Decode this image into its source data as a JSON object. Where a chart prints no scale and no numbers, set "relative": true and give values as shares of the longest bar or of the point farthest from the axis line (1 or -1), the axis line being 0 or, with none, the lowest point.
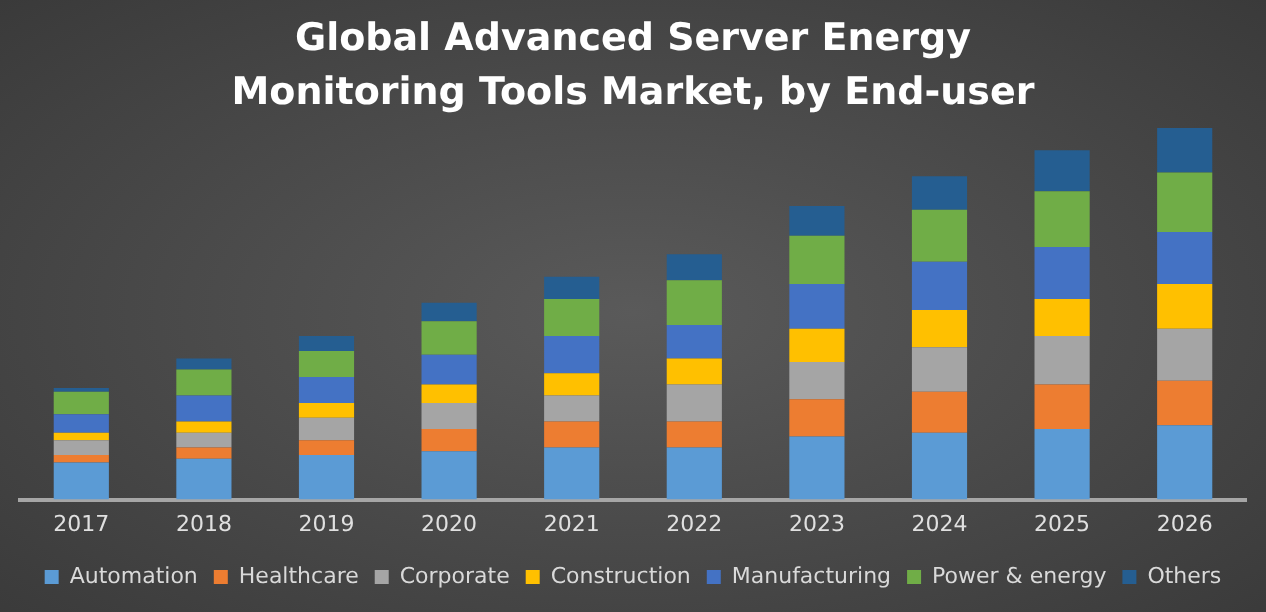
{
  "chart_data": {
    "type": "bar",
    "title": "Global Advanced Server Energy Monitoring Tools Market, by End-user",
    "categories": [
      "2017",
      "2018",
      "2019",
      "2020",
      "2021",
      "2022",
      "2023",
      "2024",
      "2025",
      "2026"
    ],
    "stacked": true,
    "relative": true,
    "grid": false,
    "legend": "bottom",
    "series": [
      {
        "name": "Automation",
        "color": "#5b9bd5",
        "values": [
          0.1,
          0.11,
          0.12,
          0.13,
          0.14,
          0.14,
          0.17,
          0.18,
          0.19,
          0.2
        ]
      },
      {
        "name": "Healthcare",
        "color": "#ed7d31",
        "values": [
          0.02,
          0.03,
          0.04,
          0.06,
          0.07,
          0.07,
          0.1,
          0.11,
          0.12,
          0.12
        ]
      },
      {
        "name": "Corporate",
        "color": "#a5a5a5",
        "values": [
          0.04,
          0.04,
          0.06,
          0.07,
          0.07,
          0.1,
          0.1,
          0.12,
          0.13,
          0.14
        ]
      },
      {
        "name": "Construction",
        "color": "#ffc000",
        "values": [
          0.02,
          0.03,
          0.04,
          0.05,
          0.06,
          0.07,
          0.09,
          0.1,
          0.1,
          0.12
        ]
      },
      {
        "name": "Manufacturing",
        "color": "#4472c4",
        "values": [
          0.05,
          0.07,
          0.07,
          0.08,
          0.1,
          0.09,
          0.12,
          0.13,
          0.14,
          0.14
        ]
      },
      {
        "name": "Power & energy",
        "color": "#70ad47",
        "values": [
          0.06,
          0.07,
          0.07,
          0.09,
          0.1,
          0.12,
          0.13,
          0.14,
          0.15,
          0.16
        ]
      },
      {
        "name": "Others",
        "color": "#255e91",
        "values": [
          0.01,
          0.03,
          0.04,
          0.05,
          0.06,
          0.07,
          0.08,
          0.09,
          0.11,
          0.12
        ]
      }
    ]
  }
}
